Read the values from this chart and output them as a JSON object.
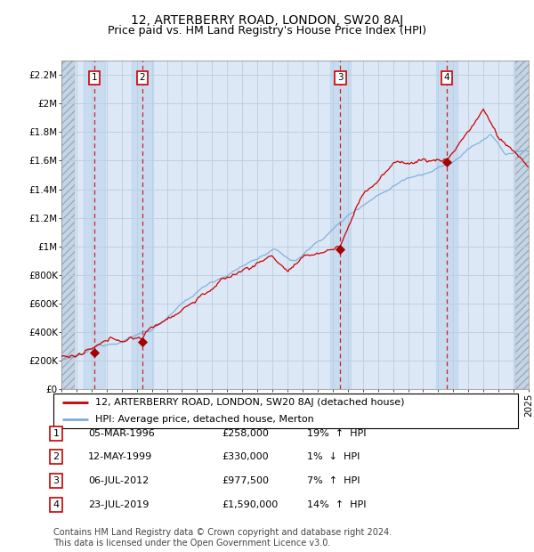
{
  "title": "12, ARTERBERRY ROAD, LONDON, SW20 8AJ",
  "subtitle": "Price paid vs. HM Land Registry's House Price Index (HPI)",
  "ylabel_ticks": [
    "£0",
    "£200K",
    "£400K",
    "£600K",
    "£800K",
    "£1M",
    "£1.2M",
    "£1.4M",
    "£1.6M",
    "£1.8M",
    "£2M",
    "£2.2M"
  ],
  "ytick_values": [
    0,
    200000,
    400000,
    600000,
    800000,
    1000000,
    1200000,
    1400000,
    1600000,
    1800000,
    2000000,
    2200000
  ],
  "xmin": 1994.0,
  "xmax": 2025.0,
  "ymin": 0,
  "ymax": 2300000,
  "sales": [
    {
      "label": 1,
      "date_str": "05-MAR-1996",
      "year": 1996.18,
      "price": 258000,
      "pct": "19%",
      "dir": "↑"
    },
    {
      "label": 2,
      "date_str": "12-MAY-1999",
      "year": 1999.36,
      "price": 330000,
      "pct": "1%",
      "dir": "↓"
    },
    {
      "label": 3,
      "date_str": "06-JUL-2012",
      "year": 2012.51,
      "price": 977500,
      "pct": "7%",
      "dir": "↑"
    },
    {
      "label": 4,
      "date_str": "23-JUL-2019",
      "year": 2019.56,
      "price": 1590000,
      "pct": "14%",
      "dir": "↑"
    }
  ],
  "legend_line1": "12, ARTERBERRY ROAD, LONDON, SW20 8AJ (detached house)",
  "legend_line2": "HPI: Average price, detached house, Merton",
  "footnote": "Contains HM Land Registry data © Crown copyright and database right 2024.\nThis data is licensed under the Open Government Licence v3.0.",
  "red_line_color": "#cc0000",
  "blue_line_color": "#7aabdc",
  "sale_marker_color": "#aa0000",
  "dashed_line_color": "#cc0000",
  "bg_plot_color": "#dce8f5",
  "grid_color": "#bbccdd",
  "title_fontsize": 10,
  "subtitle_fontsize": 9,
  "tick_fontsize": 7.5,
  "legend_fontsize": 8,
  "footnote_fontsize": 7
}
